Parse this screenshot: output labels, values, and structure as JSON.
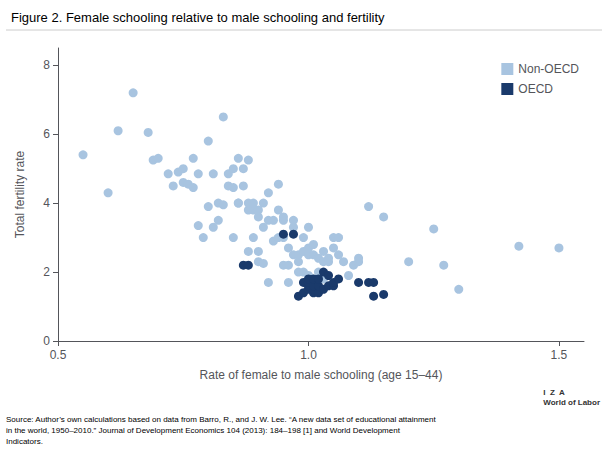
{
  "chart_data": {
    "type": "scatter",
    "title": "Figure 2. Female schooling relative to male schooling and fertility",
    "xlabel": "Rate of female to male schooling (age 15–44)",
    "ylabel": "Total fertility rate",
    "xlim": [
      0.5,
      1.55
    ],
    "ylim": [
      0,
      8.5
    ],
    "xticks": [
      0.5,
      {
        "value": 1.0,
        "label": "1.0"
      },
      1.5
    ],
    "yticks": [
      0,
      2,
      4,
      6,
      8
    ],
    "grid": false,
    "legend": "upper right",
    "annotations": [
      "Source: Author’s own calculations based on data from Barro, R., and J. W. Lee. “A new data set of educational attainment\nin the world, 1950–2010.” Journal of Development Economics 104 (2013): 184–198 [1] and World Development\nIndicators.",
      "I  Z  A\nWorld of Labor"
    ],
    "series": [
      {
        "name": "Non-OECD",
        "color": "#a8c4e0",
        "x": [
          0.55,
          0.6,
          0.62,
          0.65,
          0.68,
          0.69,
          0.7,
          0.72,
          0.73,
          0.74,
          0.75,
          0.75,
          0.76,
          0.77,
          0.77,
          0.78,
          0.78,
          0.79,
          0.8,
          0.8,
          0.81,
          0.81,
          0.82,
          0.82,
          0.83,
          0.83,
          0.84,
          0.84,
          0.85,
          0.85,
          0.85,
          0.86,
          0.86,
          0.86,
          0.87,
          0.87,
          0.88,
          0.88,
          0.88,
          0.88,
          0.89,
          0.89,
          0.89,
          0.9,
          0.9,
          0.9,
          0.9,
          0.91,
          0.91,
          0.91,
          0.92,
          0.92,
          0.92,
          0.93,
          0.93,
          0.94,
          0.94,
          0.94,
          0.95,
          0.95,
          0.95,
          0.95,
          0.96,
          0.96,
          0.96,
          0.97,
          0.97,
          0.97,
          0.98,
          0.98,
          0.98,
          0.99,
          0.99,
          0.99,
          1.0,
          1.0,
          1.0,
          1.0,
          1.01,
          1.01,
          1.01,
          1.02,
          1.02,
          1.03,
          1.03,
          1.03,
          1.04,
          1.04,
          1.05,
          1.05,
          1.06,
          1.06,
          1.07,
          1.08,
          1.09,
          1.1,
          1.1,
          1.12,
          1.15,
          1.2,
          1.25,
          1.27,
          1.3,
          1.42,
          1.5
        ],
        "values": [
          5.4,
          4.3,
          6.1,
          7.2,
          6.05,
          5.25,
          5.3,
          4.85,
          4.5,
          4.9,
          4.6,
          5.0,
          4.55,
          4.45,
          5.3,
          4.85,
          3.35,
          3.0,
          3.9,
          5.8,
          3.3,
          4.85,
          3.5,
          4.0,
          6.5,
          3.95,
          4.5,
          4.85,
          3.0,
          4.45,
          5.0,
          4.0,
          5.3,
          4.0,
          4.5,
          5.0,
          2.6,
          3.8,
          4.0,
          5.25,
          3.8,
          4.0,
          3.0,
          2.3,
          2.6,
          3.6,
          3.8,
          2.25,
          3.3,
          4.0,
          1.7,
          3.5,
          4.3,
          2.9,
          3.5,
          3.0,
          3.8,
          4.55,
          2.2,
          3.0,
          3.5,
          3.6,
          1.7,
          2.2,
          2.7,
          2.5,
          3.3,
          3.5,
          2.0,
          2.3,
          2.5,
          2.0,
          2.6,
          3.0,
          1.9,
          2.5,
          2.7,
          3.3,
          1.8,
          2.5,
          2.8,
          2.0,
          2.4,
          1.8,
          2.3,
          2.6,
          2.3,
          2.4,
          2.7,
          3.0,
          2.5,
          3.0,
          2.3,
          1.9,
          2.2,
          2.3,
          2.4,
          3.9,
          3.6,
          2.3,
          3.25,
          2.2,
          1.5,
          2.75,
          2.7
        ]
      },
      {
        "name": "OECD",
        "color": "#1a3a6b",
        "x": [
          0.87,
          0.88,
          0.95,
          0.97,
          0.98,
          0.99,
          0.99,
          1.0,
          1.0,
          1.0,
          1.0,
          1.01,
          1.01,
          1.01,
          1.01,
          1.02,
          1.02,
          1.02,
          1.03,
          1.03,
          1.04,
          1.04,
          1.05,
          1.05,
          1.06,
          1.1,
          1.12,
          1.13,
          1.13,
          1.15
        ],
        "values": [
          2.2,
          2.2,
          3.1,
          3.1,
          1.3,
          1.4,
          1.7,
          1.5,
          1.6,
          1.7,
          1.8,
          1.4,
          1.5,
          1.6,
          1.8,
          1.4,
          1.6,
          1.8,
          1.5,
          2.0,
          1.6,
          1.9,
          1.6,
          1.7,
          1.8,
          1.7,
          1.7,
          1.3,
          1.7,
          1.35
        ]
      }
    ]
  }
}
